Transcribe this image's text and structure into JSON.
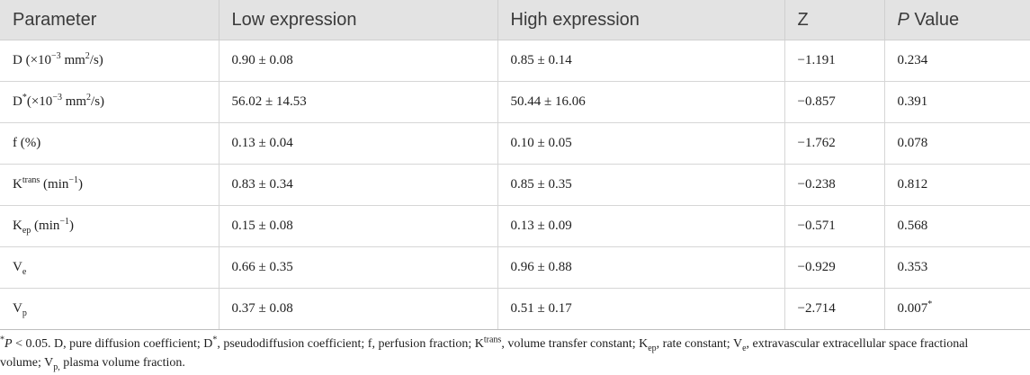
{
  "header": {
    "parameter": "Parameter",
    "low": "Low expression",
    "high": "High expression",
    "z": "Z",
    "p_italic": "P",
    "p_rest": " Value"
  },
  "rows": [
    {
      "p_base": "D (×10",
      "p_sup": "−3",
      "p_mid": " mm",
      "p_sup2": "2",
      "p_tail": "/s)",
      "low": "0.90 ± 0.08",
      "high": "0.85 ± 0.14",
      "z": "−1.191",
      "pval": "0.234"
    },
    {
      "p_base": "D",
      "p_sup": "*",
      "p_mid": "(×10",
      "p_sup2": "−3",
      "p_tail": " mm",
      "p_sup3": "2",
      "p_tail2": "/s)",
      "low": "56.02 ± 14.53",
      "high": "50.44 ± 16.06",
      "z": "−0.857",
      "pval": "0.391"
    },
    {
      "p_base": "f (%)",
      "low": "0.13 ± 0.04",
      "high": "0.10 ± 0.05",
      "z": "−1.762",
      "pval": "0.078"
    },
    {
      "p_base": "K",
      "p_sup": "trans",
      "p_tail": " (min",
      "p_sup2": "−1",
      "p_tail2": ")",
      "low": "0.83 ± 0.34",
      "high": "0.85 ± 0.35",
      "z": "−0.238",
      "pval": "0.812"
    },
    {
      "p_base": "K",
      "p_sub": "ep",
      "p_tail": " (min",
      "p_sup2": "−1",
      "p_tail2": ")",
      "low": "0.15 ± 0.08",
      "high": "0.13 ± 0.09",
      "z": "−0.571",
      "pval": "0.568"
    },
    {
      "p_base": "V",
      "p_sub": "e",
      "low": "0.66 ± 0.35",
      "high": "0.96 ± 0.88",
      "z": "−0.929",
      "pval": "0.353"
    },
    {
      "p_base": "V",
      "p_sub": "p",
      "low": "0.37 ± 0.08",
      "high": "0.51 ± 0.17",
      "z": "−2.714",
      "pval": "0.007",
      "pval_sup": "*"
    }
  ],
  "footnote": {
    "star": "*",
    "p": "P",
    "line1_a": " < 0.05. D, pure diffusion coefficient; D",
    "line1_b": "*",
    "line1_c": ", pseudodiffusion coefficient; f, perfusion fraction; K",
    "ktrans_sup": "trans",
    "line1_d": ", volume transfer constant; K",
    "kep_sub": "ep",
    "line1_e": ", rate constant; V",
    "ve_sub": "e",
    "line1_f": ", extravascular extracellular space fractional",
    "line2_a": "volume; V",
    "vp_sub": "p,",
    "line2_b": " plasma volume fraction."
  }
}
